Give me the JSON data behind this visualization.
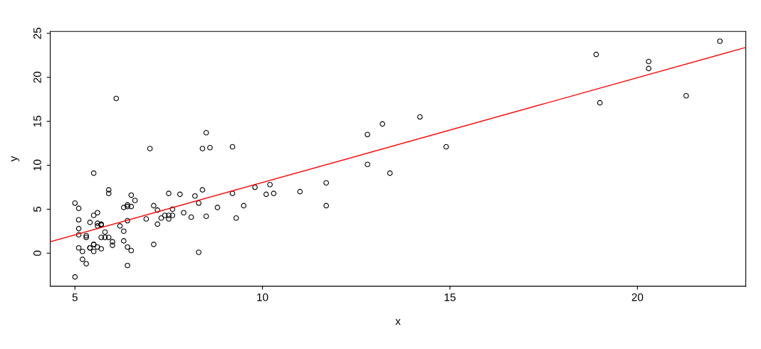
{
  "chart_data": {
    "type": "scatter",
    "xlabel": "x",
    "ylabel": "y",
    "xlim": [
      4.34,
      22.89
    ],
    "ylim": [
      -3.75,
      25.22
    ],
    "xticks": [
      5,
      10,
      15,
      20
    ],
    "yticks": [
      0,
      5,
      10,
      15,
      20,
      25
    ],
    "grid": false,
    "legend": false,
    "marker": "circle",
    "series": [
      {
        "color": "#000000",
        "x": [
          6.1,
          5.5,
          8.5,
          7.0,
          5.9,
          8.4,
          7.5,
          8.6,
          6.5,
          5.1,
          5.7,
          14.2,
          5.7,
          8.4,
          5.6,
          5.4,
          6.4,
          5.1,
          6.4,
          7.1,
          6.2,
          20.3,
          5.5,
          6.3,
          5.6,
          18.9,
          12.8,
          11.0,
          13.2,
          22.2,
          5.3,
          6.6,
          9.2,
          5.9,
          8.2,
          7.9,
          8.1,
          5.6,
          12.8,
          6.4,
          5.4,
          6.9,
          11.7,
          5.8,
          7.8,
          7.1,
          5.1,
          5.8,
          11.7,
          5.5,
          7.5,
          5.3,
          7.4,
          7.6,
          6.3,
          6.4,
          6.3,
          5.6,
          9.3,
          9.5,
          8.8,
          5.2,
          21.3,
          14.9,
          19.0,
          7.2,
          8.3,
          10.2,
          5.5,
          20.3,
          10.1,
          7.3,
          6.0,
          7.2,
          5.0,
          6.5,
          7.5,
          5.0,
          10.3,
          5.1,
          5.7,
          5.2,
          6.4,
          9.8,
          6.5,
          8.5,
          9.2,
          6.0,
          5.5,
          5.1,
          5.7,
          7.6,
          5.9,
          5.3,
          8.3,
          13.4,
          5.4
        ],
        "values": [
          17.6,
          9.1,
          13.7,
          11.9,
          6.8,
          11.9,
          4.3,
          12.0,
          6.6,
          3.8,
          3.3,
          15.5,
          3.2,
          7.2,
          0.7,
          3.5,
          5.3,
          0.6,
          3.7,
          5.4,
          3.1,
          21.8,
          4.3,
          5.2,
          3.1,
          22.6,
          13.5,
          7.0,
          14.7,
          24.1,
          -1.2,
          6.0,
          12.1,
          1.8,
          6.5,
          4.6,
          4.1,
          3.4,
          10.1,
          5.5,
          0.6,
          3.9,
          5.4,
          2.4,
          6.7,
          1.0,
          5.1,
          1.8,
          8.0,
          1.0,
          6.8,
          1.8,
          4.3,
          5.0,
          1.4,
          -1.4,
          2.5,
          4.6,
          4.0,
          5.4,
          5.2,
          -0.7,
          17.9,
          12.1,
          17.1,
          4.9,
          5.7,
          7.8,
          1.0,
          21.0,
          6.7,
          4.0,
          1.3,
          3.3,
          -2.7,
          0.3,
          3.9,
          5.7,
          6.8,
          2.1,
          0.5,
          0.2,
          0.7,
          7.5,
          5.3,
          4.2,
          6.8,
          0.9,
          0.2,
          2.8,
          1.8,
          4.3,
          7.2,
          2.0,
          0.1,
          9.1,
          0.6
        ]
      },
      {
        "type": "line",
        "color": "#ff0000",
        "marker": "none",
        "line_style": "solid",
        "x": [
          4.34,
          22.89
        ],
        "values": [
          1.3,
          23.4
        ]
      }
    ]
  }
}
